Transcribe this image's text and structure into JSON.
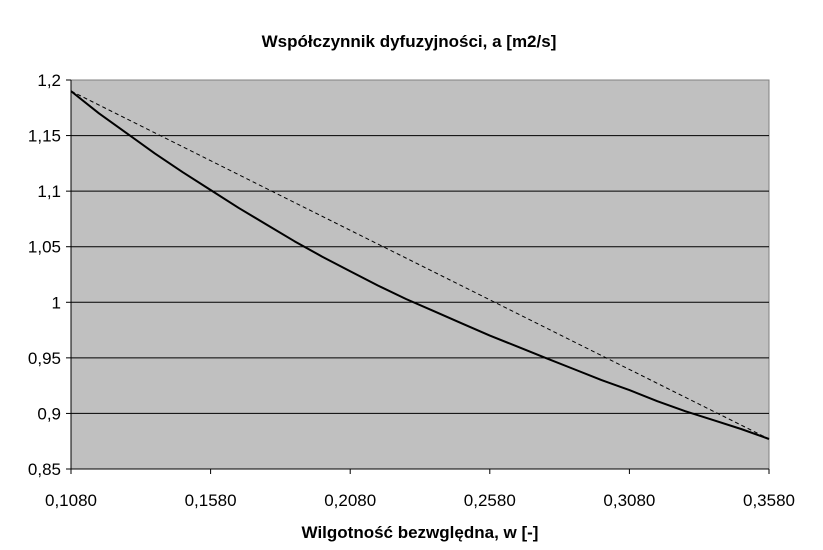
{
  "chart_data": {
    "type": "line",
    "title": "Współczynnik dyfuzyjności, a [m2/s]",
    "xlabel": "Wilgotność bezwględna, w [-]",
    "ylabel": "",
    "xlim": [
      0.108,
      0.358
    ],
    "ylim": [
      0.85,
      1.2
    ],
    "x_ticks": [
      0.108,
      0.158,
      0.208,
      0.258,
      0.308,
      0.358
    ],
    "x_tick_labels": [
      "0,1080",
      "0,1580",
      "0,2080",
      "0,2580",
      "0,3080",
      "0,3580"
    ],
    "y_ticks": [
      0.85,
      0.9,
      0.95,
      1.0,
      1.05,
      1.1,
      1.15,
      1.2
    ],
    "y_tick_labels": [
      "0,85",
      "0,9",
      "0,95",
      "1",
      "1,05",
      "1,1",
      "1,15",
      "1,2"
    ],
    "grid": "horizontal",
    "legend": "none",
    "plot_background": "#c0c0c0",
    "series": [
      {
        "style": "solid",
        "color": "#000000",
        "x": [
          0.108,
          0.118,
          0.128,
          0.138,
          0.148,
          0.158,
          0.168,
          0.178,
          0.188,
          0.198,
          0.208,
          0.218,
          0.228,
          0.238,
          0.248,
          0.258,
          0.268,
          0.278,
          0.288,
          0.298,
          0.308,
          0.318,
          0.328,
          0.338,
          0.348,
          0.358
        ],
        "y": [
          1.19,
          1.17,
          1.152,
          1.134,
          1.117,
          1.101,
          1.085,
          1.07,
          1.055,
          1.041,
          1.028,
          1.015,
          1.003,
          0.992,
          0.981,
          0.97,
          0.96,
          0.95,
          0.94,
          0.93,
          0.921,
          0.911,
          0.902,
          0.894,
          0.886,
          0.877
        ]
      },
      {
        "style": "dashed",
        "color": "#000000",
        "x": [
          0.108,
          0.358
        ],
        "y": [
          1.19,
          0.877
        ]
      }
    ]
  }
}
